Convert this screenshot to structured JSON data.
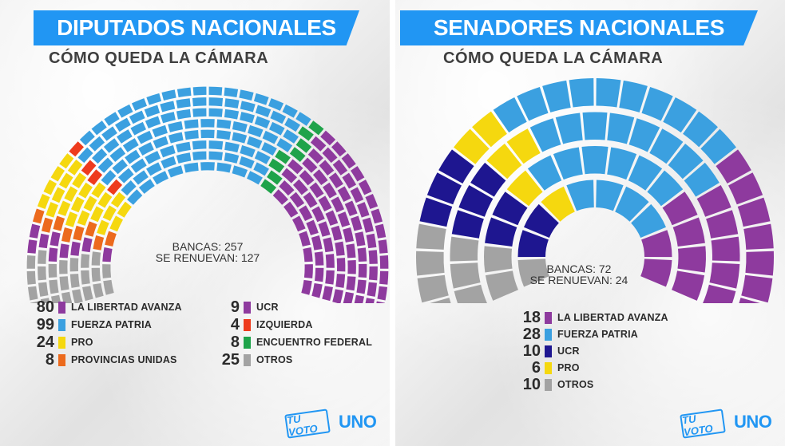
{
  "chart_data": [
    {
      "type": "parliament",
      "title": "DIPUTADOS NACIONALES",
      "subtitle": "CÓMO QUEDA LA CÁMARA",
      "stats": {
        "seats_label": "BANCAS: 257",
        "renew_label": "SE RENUEVAN: 127"
      },
      "total": 257,
      "series": [
        {
          "name": "LA LIBERTAD AVANZA",
          "value": 80,
          "color": "#8e3a9e"
        },
        {
          "name": "FUERZA PATRIA",
          "value": 99,
          "color": "#3ba0e0"
        },
        {
          "name": "PRO",
          "value": 24,
          "color": "#f5d80f"
        },
        {
          "name": "PROVINCIAS UNIDAS",
          "value": 8,
          "color": "#ec6a1d"
        },
        {
          "name": "UCR",
          "value": 9,
          "color": "#8e3a9e"
        },
        {
          "name": "IZQUIERDA",
          "value": 4,
          "color": "#ee3b1d"
        },
        {
          "name": "ENCUENTRO FEDERAL",
          "value": 8,
          "color": "#1fa34a"
        },
        {
          "name": "OTROS",
          "value": 25,
          "color": "#a3a3a3"
        }
      ],
      "seat_order": [
        "OTROS",
        "UCR",
        "PROVINCIAS UNIDAS",
        "PRO",
        "IZQUIERDA",
        "FUERZA PATRIA",
        "ENCUENTRO FEDERAL",
        "LA LIBERTAD AVANZA"
      ]
    },
    {
      "type": "parliament",
      "title": "SENADORES NACIONALES",
      "subtitle": "CÓMO QUEDA LA CÁMARA",
      "stats": {
        "seats_label": "BANCAS: 72",
        "renew_label": "SE RENUEVAN: 24"
      },
      "total": 72,
      "series": [
        {
          "name": "LA LIBERTAD AVANZA",
          "value": 18,
          "color": "#8e3a9e"
        },
        {
          "name": "FUERZA PATRIA",
          "value": 28,
          "color": "#3ba0e0"
        },
        {
          "name": "UCR",
          "value": 10,
          "color": "#1e1690"
        },
        {
          "name": "PRO",
          "value": 6,
          "color": "#f5d80f"
        },
        {
          "name": "OTROS",
          "value": 10,
          "color": "#a3a3a3"
        }
      ],
      "seat_order": [
        "OTROS",
        "UCR",
        "PRO",
        "FUERZA PATRIA",
        "LA LIBERTAD AVANZA"
      ]
    }
  ],
  "logos": {
    "tuvoto": "TU VOTO",
    "uno": "UNO"
  }
}
